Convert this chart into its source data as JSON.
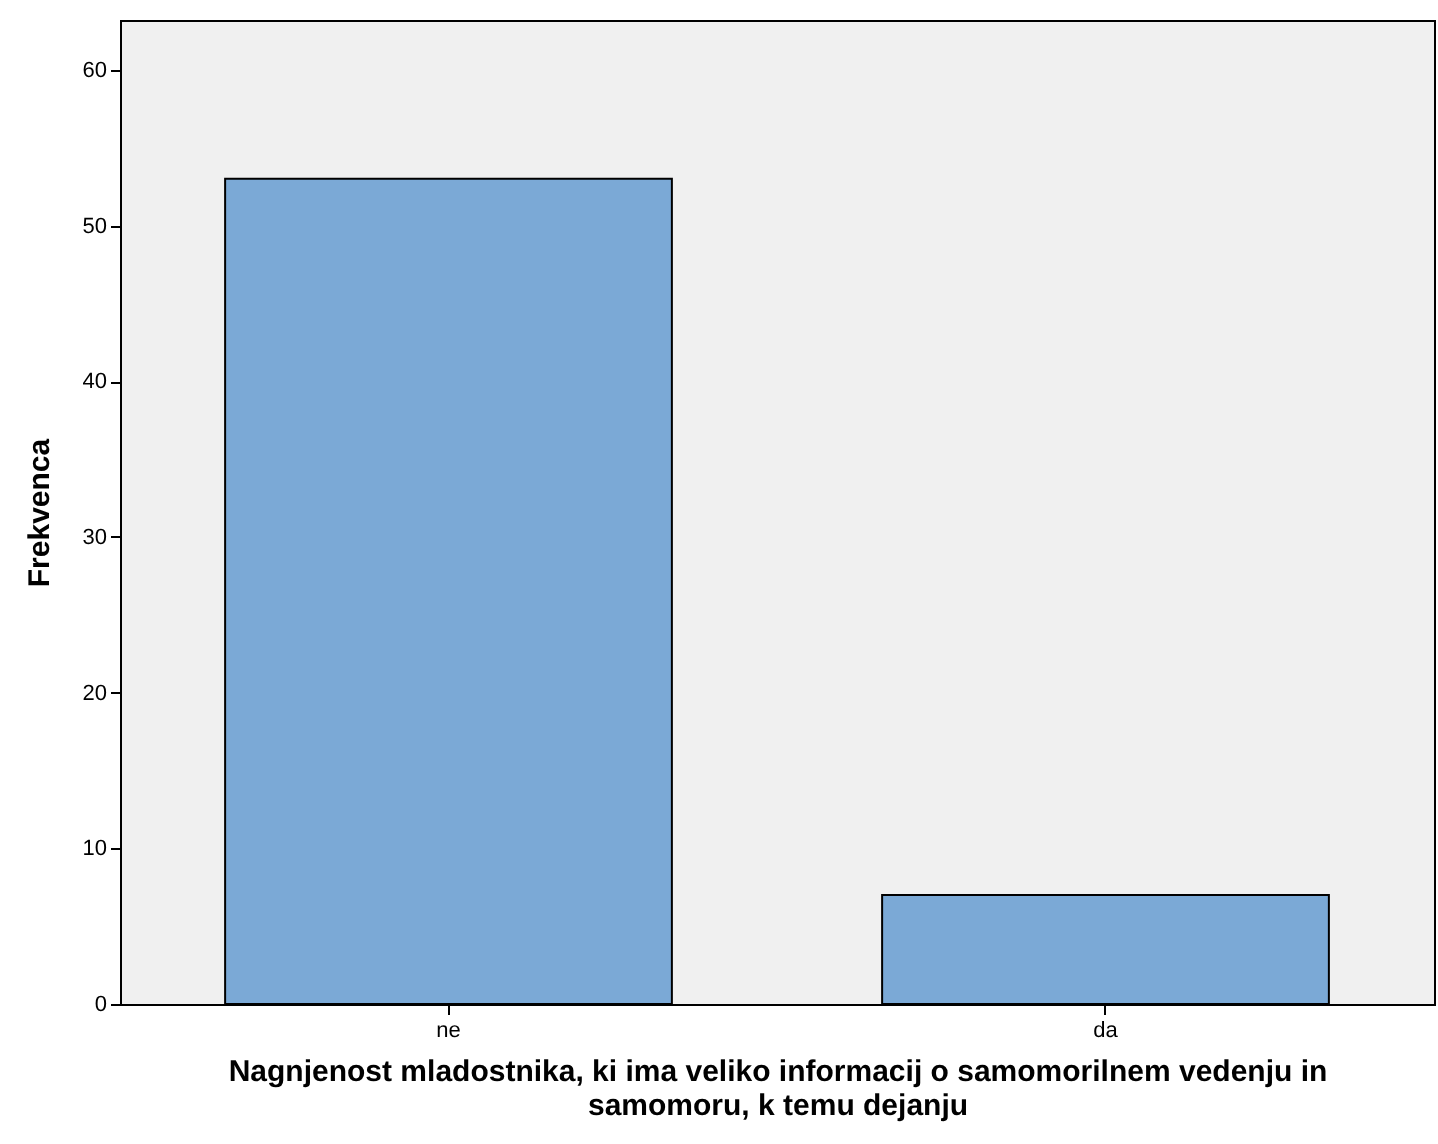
{
  "chart_data": {
    "type": "bar",
    "xlabel": "Nagnjenost mladostnika, ki ima veliko informacij o samomorilnem vedenju in samomoru, k temu dejanju",
    "ylabel": "Frekvenca",
    "categories": [
      "ne",
      "da"
    ],
    "values": [
      53,
      7
    ],
    "color": "#7ba9d6",
    "ylim": [
      0,
      63.2
    ],
    "yticks": [
      0,
      10,
      20,
      30,
      40,
      50,
      60
    ],
    "grid": false
  }
}
